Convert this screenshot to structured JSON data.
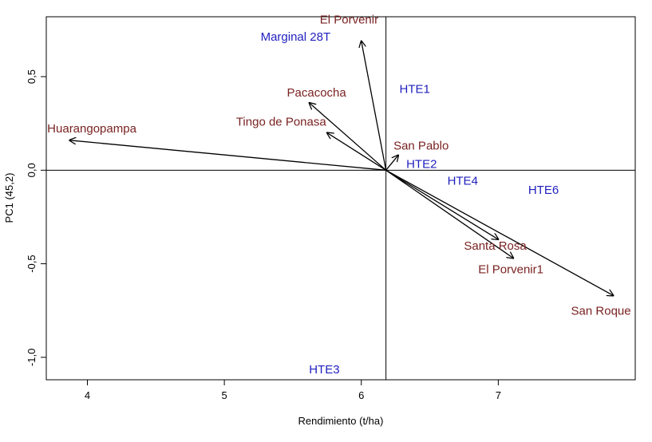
{
  "chart_data": {
    "type": "biplot",
    "xlabel": "Rendimiento (t/ha)",
    "ylabel": "PC1 (45,2)",
    "xlim": [
      3.7,
      8.0
    ],
    "ylim": [
      -1.12,
      0.82
    ],
    "x_ticks": [
      {
        "value": 4,
        "label": "4"
      },
      {
        "value": 5,
        "label": "5"
      },
      {
        "value": 6,
        "label": "6"
      },
      {
        "value": 7,
        "label": "7"
      }
    ],
    "y_ticks": [
      {
        "value": -1.0,
        "label": "-1,0"
      },
      {
        "value": -0.5,
        "label": "-0,5"
      },
      {
        "value": 0.0,
        "label": "0,0"
      },
      {
        "value": 0.5,
        "label": "0,5"
      }
    ],
    "reference_lines": {
      "x": 6.18,
      "y": 0.0
    },
    "origin": {
      "x": 6.18,
      "y": 0.0
    },
    "genotype_color": "#1f1fbf",
    "environment_color": "#7a2222",
    "genotypes": [
      {
        "name": "Marginal 28T",
        "x": 5.52,
        "y": 0.71
      },
      {
        "name": "HTE1",
        "x": 6.39,
        "y": 0.43
      },
      {
        "name": "HTE2",
        "x": 6.44,
        "y": 0.03
      },
      {
        "name": "HTE4",
        "x": 6.74,
        "y": -0.06
      },
      {
        "name": "HTE6",
        "x": 7.33,
        "y": -0.11
      },
      {
        "name": "HTE3",
        "x": 5.73,
        "y": -1.07
      }
    ],
    "environments": [
      {
        "name": "El Porvenir",
        "x": 6.0,
        "y": 0.69
      },
      {
        "name": "Pacacocha",
        "x": 5.62,
        "y": 0.36
      },
      {
        "name": "Tingo de Ponasa",
        "x": 5.75,
        "y": 0.2
      },
      {
        "name": "Huarangopampa",
        "x": 3.87,
        "y": 0.16
      },
      {
        "name": "San Pablo",
        "x": 6.27,
        "y": 0.08
      },
      {
        "name": "Santa Rosa",
        "x": 7.0,
        "y": -0.37
      },
      {
        "name": "El Porvenir1",
        "x": 7.11,
        "y": -0.47
      },
      {
        "name": "San Roque",
        "x": 7.84,
        "y": -0.67
      }
    ]
  }
}
